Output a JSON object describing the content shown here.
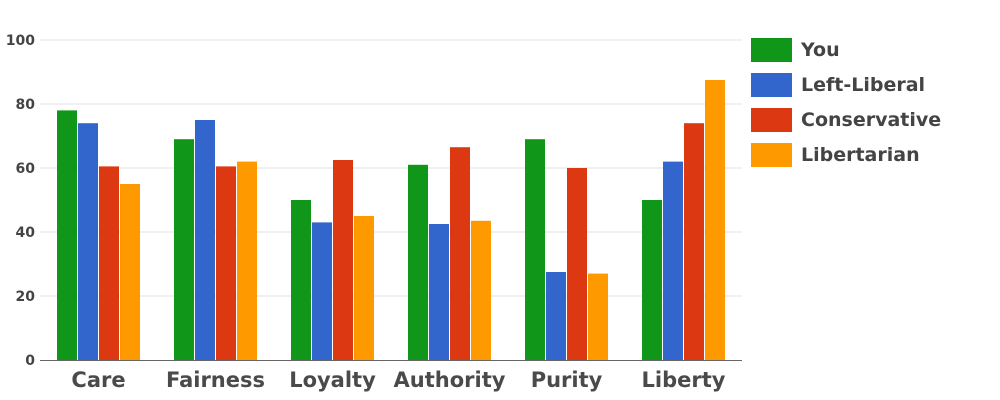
{
  "chart_data": {
    "type": "bar",
    "categories": [
      "Care",
      "Fairness",
      "Loyalty",
      "Authority",
      "Purity",
      "Liberty"
    ],
    "series": [
      {
        "name": "You",
        "color": "#109618",
        "values": [
          78,
          69,
          50,
          61,
          69,
          50
        ]
      },
      {
        "name": "Left-Liberal",
        "color": "#3366cc",
        "values": [
          74,
          75,
          43,
          42.5,
          27.5,
          62
        ]
      },
      {
        "name": "Conservative",
        "color": "#dc3912",
        "values": [
          60.5,
          60.5,
          62.5,
          66.5,
          60,
          74
        ]
      },
      {
        "name": "Libertarian",
        "color": "#ff9900",
        "values": [
          55,
          62,
          45,
          43.5,
          27,
          87.5
        ]
      }
    ],
    "ylim": [
      0,
      100
    ],
    "yticks": [
      0,
      20,
      40,
      60,
      80,
      100
    ],
    "ytick_labels": [
      "0",
      "20",
      "40",
      "60",
      "80",
      "100"
    ],
    "grid": true,
    "legend_position": "right",
    "title": "",
    "xlabel": "",
    "ylabel": ""
  }
}
